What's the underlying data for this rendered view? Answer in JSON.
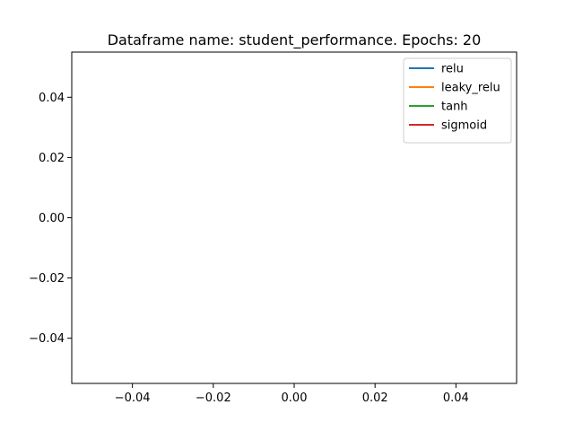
{
  "chart_data": {
    "type": "line",
    "title": "Dataframe name: student_performance. Epochs: 20",
    "xlabel": "",
    "ylabel": "",
    "xlim": [
      -0.055,
      0.055
    ],
    "ylim": [
      -0.055,
      0.055
    ],
    "xticks": [
      -0.04,
      -0.02,
      0.0,
      0.02,
      0.04
    ],
    "yticks": [
      -0.04,
      -0.02,
      0.0,
      0.02,
      0.04
    ],
    "xtick_labels": [
      "−0.04",
      "−0.02",
      "0.00",
      "0.02",
      "0.04"
    ],
    "ytick_labels": [
      "−0.04",
      "−0.02",
      "0.00",
      "0.02",
      "0.04"
    ],
    "grid": false,
    "legend_position": "top-right",
    "series": [
      {
        "name": "relu",
        "color": "#1f77b4",
        "x": [],
        "y": []
      },
      {
        "name": "leaky_relu",
        "color": "#ff7f0e",
        "x": [],
        "y": []
      },
      {
        "name": "tanh",
        "color": "#2ca02c",
        "x": [],
        "y": []
      },
      {
        "name": "sigmoid",
        "color": "#d62728",
        "x": [],
        "y": []
      }
    ]
  }
}
